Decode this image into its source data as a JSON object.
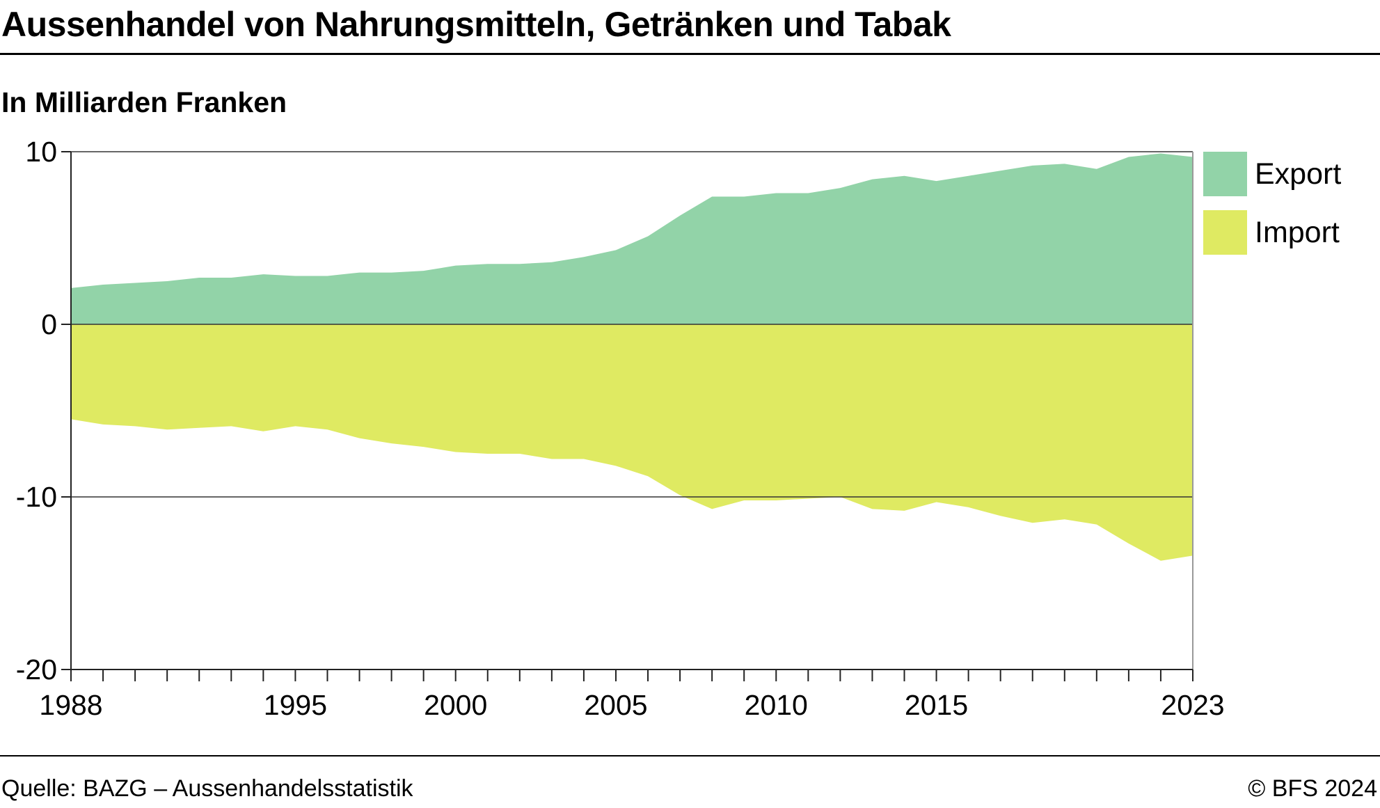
{
  "title": "Aussenhandel von Nahrungsmitteln, Getränken und Tabak",
  "subtitle": "In Milliarden Franken",
  "source": "Quelle: BAZG – Aussenhandelsstatistik",
  "copyright": "© BFS 2024",
  "chart_data": {
    "type": "area",
    "title": "Aussenhandel von Nahrungsmitteln, Getränken und Tabak",
    "ylabel": "In Milliarden Franken",
    "xlabel": "",
    "ylim": [
      -20,
      10
    ],
    "xlim": [
      1988,
      2023
    ],
    "y_ticks": [
      10,
      0,
      -10,
      -20
    ],
    "x_tick_labels": [
      1988,
      1995,
      2000,
      2005,
      2010,
      2015,
      2023
    ],
    "grid": "horizontal lines at 10, 0, -10",
    "legend_position": "right",
    "x": [
      1988,
      1989,
      1990,
      1991,
      1992,
      1993,
      1994,
      1995,
      1996,
      1997,
      1998,
      1999,
      2000,
      2001,
      2002,
      2003,
      2004,
      2005,
      2006,
      2007,
      2008,
      2009,
      2010,
      2011,
      2012,
      2013,
      2014,
      2015,
      2016,
      2017,
      2018,
      2019,
      2020,
      2021,
      2022,
      2023
    ],
    "series": [
      {
        "name": "Export",
        "color": "#92d3a8",
        "values": [
          2.1,
          2.3,
          2.4,
          2.5,
          2.7,
          2.7,
          2.9,
          2.8,
          2.8,
          3.0,
          3.0,
          3.1,
          3.4,
          3.5,
          3.5,
          3.6,
          3.9,
          4.3,
          5.1,
          6.3,
          7.4,
          7.4,
          7.6,
          7.6,
          7.9,
          8.4,
          8.6,
          8.3,
          8.6,
          8.9,
          9.2,
          9.3,
          9.0,
          9.7,
          9.9,
          9.7
        ]
      },
      {
        "name": "Import",
        "color": "#dfea62",
        "values": [
          -5.5,
          -5.8,
          -5.9,
          -6.1,
          -6.0,
          -5.9,
          -6.2,
          -5.9,
          -6.1,
          -6.6,
          -6.9,
          -7.1,
          -7.4,
          -7.5,
          -7.5,
          -7.8,
          -7.8,
          -8.2,
          -8.8,
          -9.9,
          -10.7,
          -10.2,
          -10.2,
          -10.1,
          -10.0,
          -10.7,
          -10.8,
          -10.3,
          -10.6,
          -11.1,
          -11.5,
          -11.3,
          -11.6,
          -12.7,
          -13.7,
          -13.4
        ]
      }
    ]
  }
}
